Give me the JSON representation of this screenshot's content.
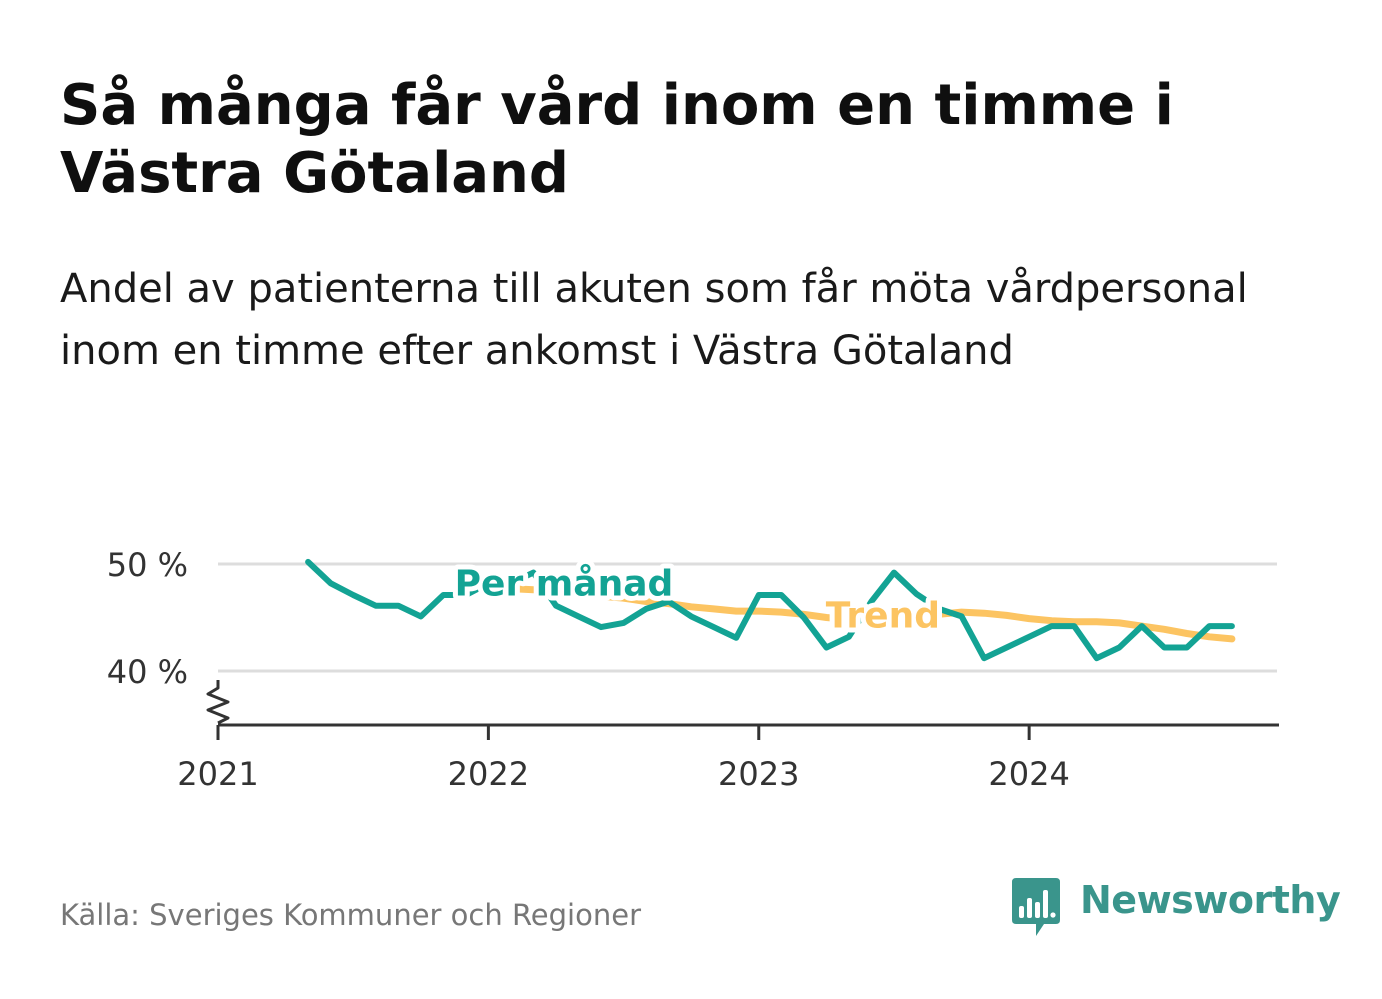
{
  "header": {
    "title": "Så många får vård inom en timme i Västra Götaland",
    "subtitle": "Andel av patienterna till akuten som får möta vårdpersonal inom en timme efter ankomst i Västra Götaland"
  },
  "footer": {
    "source": "Källa: Sveriges Kommuner och Regioner",
    "brand": "Newsworthy"
  },
  "colors": {
    "monthly": "#13a394",
    "trend": "#fcc462",
    "grid": "#dddddd",
    "axis": "#333333",
    "brand": "#3a958c"
  },
  "icons": {
    "logo": "newsworthy-chart-bubble-icon",
    "axis_break": "axis-break-zigzag-icon"
  },
  "chart_data": {
    "type": "line",
    "title": "",
    "xlabel": "",
    "ylabel": "",
    "xlim": [
      "2021-01",
      "2024-12"
    ],
    "ylim": [
      35,
      52
    ],
    "y_axis_break": true,
    "grid": true,
    "yticks": [
      {
        "value": 40,
        "label": "40 %"
      },
      {
        "value": 50,
        "label": "50 %"
      }
    ],
    "xticks": [
      {
        "value": "2021-01",
        "label": "2021"
      },
      {
        "value": "2022-01",
        "label": "2022"
      },
      {
        "value": "2023-01",
        "label": "2023"
      },
      {
        "value": "2024-01",
        "label": "2024"
      }
    ],
    "series": [
      {
        "name": "Trend",
        "label_anchor": "2023-05",
        "x": [
          "2022-02",
          "2022-03",
          "2022-04",
          "2022-05",
          "2022-06",
          "2022-07",
          "2022-08",
          "2022-09",
          "2022-10",
          "2022-11",
          "2022-12",
          "2023-01",
          "2023-02",
          "2023-03",
          "2023-04",
          "2023-05",
          "2023-06",
          "2023-07",
          "2023-08",
          "2023-09",
          "2023-10",
          "2023-11",
          "2023-12",
          "2024-01",
          "2024-02",
          "2024-03",
          "2024-04",
          "2024-05",
          "2024-06",
          "2024-07",
          "2024-08",
          "2024-09",
          "2024-10"
        ],
        "values": [
          47.7,
          47.6,
          47.4,
          47.2,
          47.0,
          46.8,
          46.5,
          46.3,
          46.0,
          45.8,
          45.6,
          45.6,
          45.5,
          45.3,
          45.0,
          44.8,
          44.8,
          44.9,
          45.1,
          45.3,
          45.5,
          45.4,
          45.2,
          44.9,
          44.7,
          44.6,
          44.6,
          44.5,
          44.2,
          43.9,
          43.5,
          43.2,
          43.0
        ]
      },
      {
        "name": "Per månad",
        "label_anchor": "2022-04",
        "x": [
          "2021-05",
          "2021-06",
          "2021-07",
          "2021-08",
          "2021-09",
          "2021-10",
          "2021-11",
          "2021-12",
          "2022-01",
          "2022-02",
          "2022-03",
          "2022-04",
          "2022-05",
          "2022-06",
          "2022-07",
          "2022-08",
          "2022-09",
          "2022-10",
          "2022-11",
          "2022-12",
          "2023-01",
          "2023-02",
          "2023-03",
          "2023-04",
          "2023-05",
          "2023-06",
          "2023-07",
          "2023-08",
          "2023-09",
          "2023-10",
          "2023-11",
          "2023-12",
          "2024-01",
          "2024-02",
          "2024-03",
          "2024-04",
          "2024-05",
          "2024-06",
          "2024-07",
          "2024-08",
          "2024-09",
          "2024-10"
        ],
        "values": [
          50.2,
          48.2,
          47.1,
          46.1,
          46.1,
          45.1,
          47.1,
          47.1,
          48.2,
          48.2,
          49.2,
          46.1,
          45.1,
          44.1,
          44.5,
          45.8,
          46.5,
          45.1,
          44.1,
          43.1,
          47.1,
          47.1,
          45.0,
          42.2,
          43.2,
          46.5,
          49.2,
          47.2,
          45.8,
          45.1,
          41.2,
          42.2,
          43.2,
          44.2,
          44.2,
          41.2,
          42.2,
          44.2,
          42.2,
          42.2,
          44.2,
          44.2
        ]
      }
    ]
  }
}
